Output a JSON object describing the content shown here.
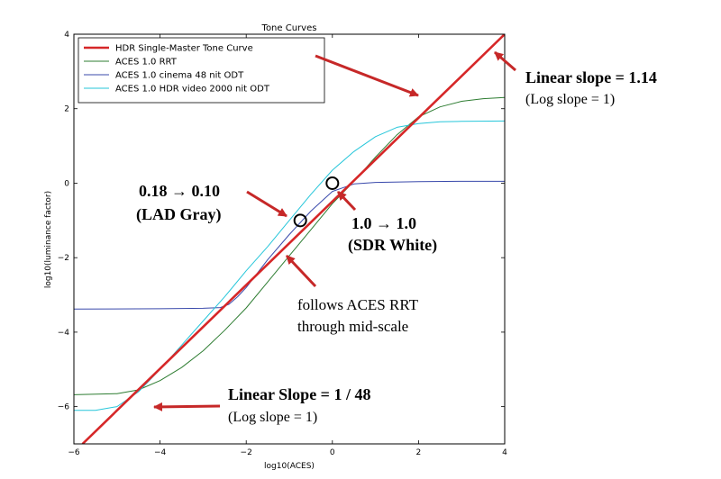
{
  "chart_data": {
    "type": "line",
    "title": "Tone Curves",
    "xlabel": "log10(ACES)",
    "ylabel": "log10(luminance factor)",
    "xlim": [
      -6,
      4
    ],
    "ylim": [
      -7,
      4
    ],
    "xticks": [
      "−6",
      "−4",
      "−2",
      "0",
      "2",
      "4"
    ],
    "xtick_values": [
      -6,
      -4,
      -2,
      0,
      2,
      4
    ],
    "yticks": [
      "−6",
      "−4",
      "−2",
      "0",
      "2",
      "4"
    ],
    "ytick_values": [
      -6,
      -4,
      -2,
      0,
      2,
      4
    ],
    "grid": false,
    "legend_position": "top-left",
    "series": [
      {
        "name": "HDR Single-Master Tone Curve",
        "color": "#d62728",
        "x": [
          -5.8,
          4.0
        ],
        "y": [
          -7.0,
          4.0
        ]
      },
      {
        "name": "ACES 1.0 RRT",
        "color": "#2e7d32",
        "x": [
          -6.0,
          -5.0,
          -4.5,
          -4.0,
          -3.5,
          -3.0,
          -2.5,
          -2.0,
          -1.5,
          -1.0,
          -0.5,
          0.0,
          0.5,
          1.0,
          1.5,
          2.0,
          2.5,
          3.0,
          3.5,
          4.0
        ],
        "y": [
          -5.68,
          -5.65,
          -5.55,
          -5.3,
          -4.95,
          -4.5,
          -3.95,
          -3.35,
          -2.65,
          -1.95,
          -1.25,
          -0.55,
          0.05,
          0.7,
          1.3,
          1.78,
          2.05,
          2.2,
          2.27,
          2.3
        ]
      },
      {
        "name": "ACES 1.0 cinema 48 nit ODT",
        "color": "#3949ab",
        "x": [
          -6.0,
          -4.0,
          -3.0,
          -2.6,
          -2.4,
          -2.2,
          -2.0,
          -1.8,
          -1.5,
          -1.0,
          -0.5,
          0.0,
          0.5,
          1.0,
          2.0,
          3.0,
          4.0
        ],
        "y": [
          -3.38,
          -3.37,
          -3.36,
          -3.34,
          -3.25,
          -3.05,
          -2.8,
          -2.5,
          -2.05,
          -1.38,
          -0.75,
          -0.22,
          -0.02,
          0.02,
          0.04,
          0.05,
          0.05
        ]
      },
      {
        "name": "ACES 1.0 HDR video 2000 nit ODT",
        "color": "#26c6da",
        "x": [
          -6.0,
          -5.5,
          -5.0,
          -4.5,
          -4.0,
          -3.5,
          -3.0,
          -2.5,
          -2.0,
          -1.5,
          -1.0,
          -0.5,
          0.0,
          0.5,
          1.0,
          1.5,
          2.0,
          2.5,
          3.0,
          4.0
        ],
        "y": [
          -6.1,
          -6.1,
          -6.0,
          -5.6,
          -5.0,
          -4.35,
          -3.7,
          -3.05,
          -2.35,
          -1.7,
          -1.0,
          -0.3,
          0.35,
          0.85,
          1.25,
          1.5,
          1.6,
          1.65,
          1.66,
          1.67
        ]
      }
    ],
    "markers": [
      {
        "label": "LAD Gray",
        "x": -0.745,
        "y": -1.0
      },
      {
        "label": "SDR White",
        "x": 0.0,
        "y": 0.0
      }
    ]
  },
  "annotations": {
    "linear_slope_high": "Linear slope = 1.14",
    "log_slope_high": "(Log slope = 1)",
    "lad_gray_line1": "0.18 → 0.10",
    "lad_gray_line2": "(LAD Gray)",
    "sdr_white_line1": "1.0 → 1.0",
    "sdr_white_line2": "(SDR White)",
    "follows_line1": "follows ACES RRT",
    "follows_line2": "through mid-scale",
    "linear_slope_low": "Linear Slope = 1 / 48",
    "log_slope_low": "(Log slope = 1)"
  },
  "colors": {
    "arrow": "#c62828"
  }
}
